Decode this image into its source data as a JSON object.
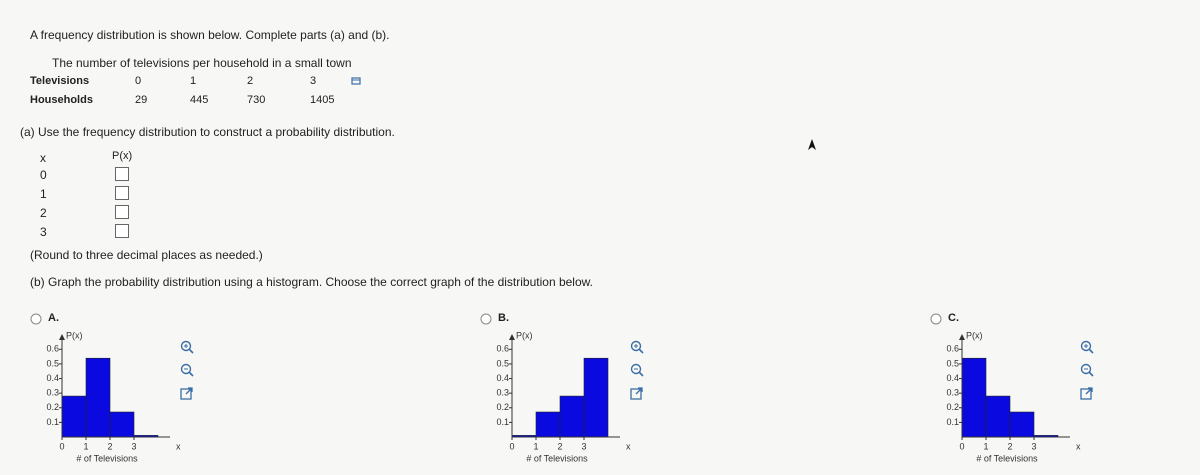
{
  "instructions": "A frequency distribution is shown below. Complete parts (a) and (b).",
  "table": {
    "caption": "The number of televisions per household in a small town",
    "rows": [
      [
        "Televisions",
        "0",
        "1",
        "2",
        "3"
      ],
      [
        "Households",
        "29",
        "445",
        "730",
        "1405"
      ]
    ]
  },
  "part_a": {
    "prompt": "(a) Use the frequency distribution to construct a probability distribution.",
    "headers": [
      "x",
      "P(x)"
    ],
    "x": [
      "0",
      "1",
      "2",
      "3"
    ],
    "note": "(Round to three decimal places as needed.)"
  },
  "part_b": {
    "prompt": "(b) Graph the probability distribution using a histogram. Choose the correct graph of the distribution below."
  },
  "options": [
    {
      "label": "A.",
      "type": "histogram",
      "y_label": "P(x)",
      "x_label": "x",
      "x_title": "# of Televisions",
      "color": "#0a0ae0",
      "bins": [
        0,
        1,
        2,
        3,
        4
      ],
      "values": [
        0.28,
        0.539,
        0.171,
        0.011
      ],
      "xlim": [
        0,
        4.5
      ],
      "xticks": [
        0,
        1,
        2,
        3
      ],
      "ylim": [
        0,
        0.65
      ],
      "yticks": [
        0.1,
        0.2,
        0.3,
        0.4,
        0.5,
        0.6
      ]
    },
    {
      "label": "B.",
      "type": "histogram",
      "y_label": "P(x)",
      "x_label": "x",
      "x_title": "# of Televisions",
      "color": "#0a0ae0",
      "bins": [
        0,
        1,
        2,
        3,
        4
      ],
      "values": [
        0.011,
        0.171,
        0.28,
        0.539
      ],
      "xlim": [
        0,
        4.5
      ],
      "xticks": [
        0,
        1,
        2,
        3
      ],
      "ylim": [
        0,
        0.65
      ],
      "yticks": [
        0.1,
        0.2,
        0.3,
        0.4,
        0.5,
        0.6
      ]
    },
    {
      "label": "C.",
      "type": "histogram",
      "y_label": "P(x)",
      "x_label": "x",
      "x_title": "# of Televisions",
      "color": "#0a0ae0",
      "bins": [
        0,
        1,
        2,
        3,
        4
      ],
      "values": [
        0.539,
        0.28,
        0.171,
        0.011
      ],
      "xlim": [
        0,
        4.5
      ],
      "xticks": [
        0,
        1,
        2,
        3
      ],
      "ylim": [
        0,
        0.65
      ],
      "yticks": [
        0.1,
        0.2,
        0.3,
        0.4,
        0.5,
        0.6
      ]
    }
  ]
}
